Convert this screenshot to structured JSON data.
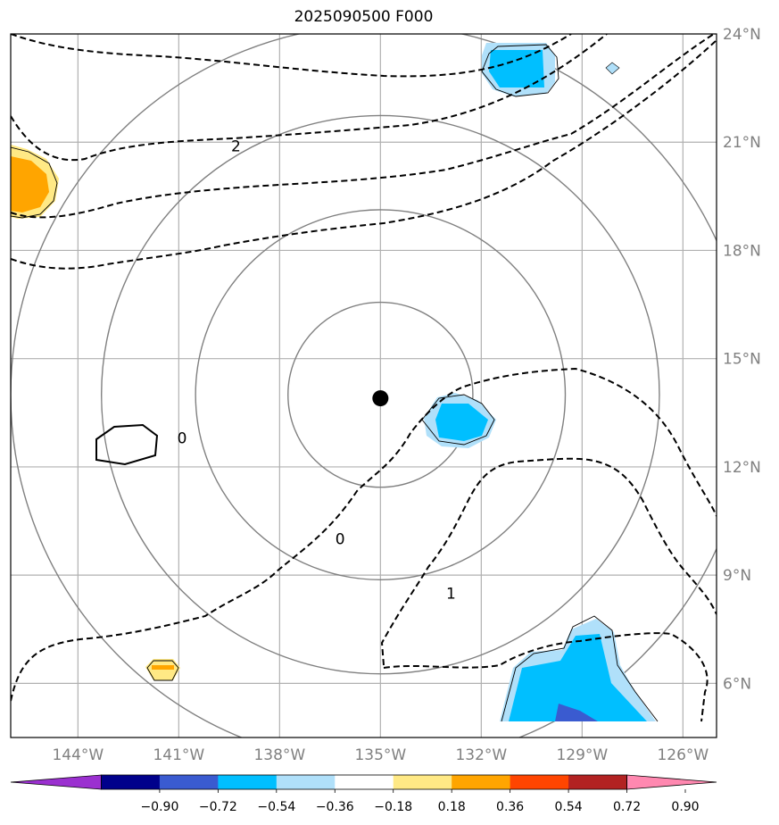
{
  "title": "2025090500 F000",
  "map": {
    "lon_range": [
      -146,
      -125
    ],
    "lat_range": [
      4.5,
      24
    ],
    "grid_lons": [
      -144,
      -141,
      -138,
      -135,
      -132,
      -129,
      -126
    ],
    "grid_lats": [
      6,
      9,
      12,
      15,
      18,
      21,
      24
    ],
    "lon_labels": [
      "144°W",
      "141°W",
      "138°W",
      "135°W",
      "132°W",
      "129°W",
      "126°W"
    ],
    "lat_labels": [
      "6°N",
      "9°N",
      "12°N",
      "15°N",
      "18°N",
      "21°N",
      "24°N"
    ],
    "center_marker": {
      "lon": -135,
      "lat": 14
    },
    "range_rings_deg": [
      2.75,
      5.5,
      8.3,
      11.0
    ],
    "grid_color": "#b0b0b0",
    "ring_color": "#808080",
    "contour_labels": [
      {
        "text": "2",
        "lon": -139.3,
        "lat": 20.9
      },
      {
        "text": "0",
        "lon": -140.9,
        "lat": 12.8
      },
      {
        "text": "0",
        "lon": -136.2,
        "lat": 10.0
      },
      {
        "text": "1",
        "lon": -132.9,
        "lat": 8.5
      }
    ]
  },
  "colorbar": {
    "levels": [
      -0.9,
      -0.72,
      -0.54,
      -0.36,
      -0.18,
      0.18,
      0.36,
      0.54,
      0.72,
      0.9
    ],
    "labels": [
      "−0.90",
      "−0.72",
      "−0.54",
      "−0.36",
      "−0.18",
      "0.18",
      "0.36",
      "0.54",
      "0.72",
      "0.90"
    ],
    "under_color": "#9b30d0",
    "over_color": "#ff88b0",
    "colors": [
      "#9b30d0",
      "#00008b",
      "#3a5bd0",
      "#00bfff",
      "#b0e0fa",
      "#ffffff",
      "#ffe985",
      "#ffa500",
      "#ff4500",
      "#b22222",
      "#ff88b0"
    ]
  },
  "colors": {
    "light_blue": "#b0e0fa",
    "deep_sky_blue": "#00bfff",
    "royal_blue": "#3a5bd0",
    "light_yellow": "#ffe985",
    "orange": "#ffa500"
  }
}
